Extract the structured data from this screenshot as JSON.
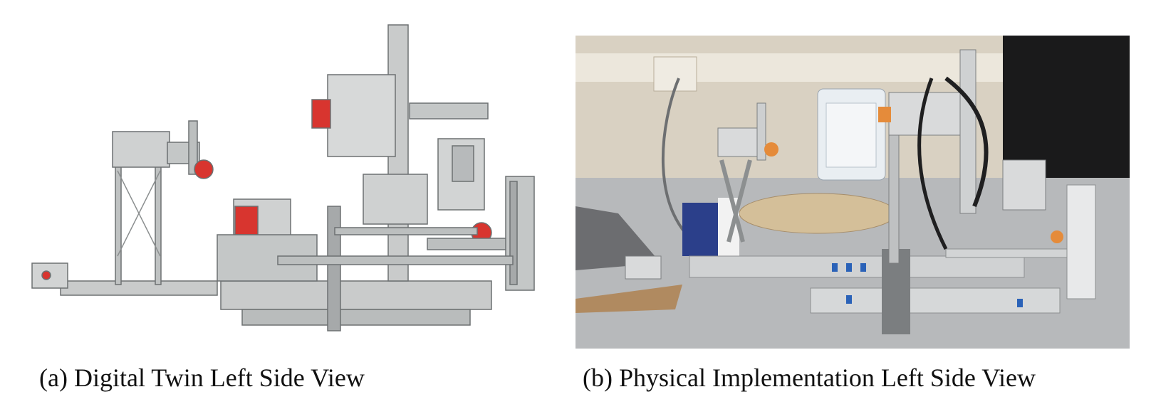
{
  "figure": {
    "panels": [
      {
        "caption": "(a)  Digital Twin Left Side View",
        "image_kind": "cad-render"
      },
      {
        "caption": "(b) Physical Implementation Left Side View",
        "image_kind": "photograph"
      }
    ]
  },
  "colors": {
    "lego_gray": "#c9cbcb",
    "lego_dark_gray": "#8c8f90",
    "lego_red": "#d8352f",
    "lego_orange": "#e58b3a",
    "lego_blue": "#2a62b8",
    "wall_beige": "#d9d1c2",
    "table_gray": "#b7b9bb",
    "turntable_tan": "#d4bf99"
  }
}
